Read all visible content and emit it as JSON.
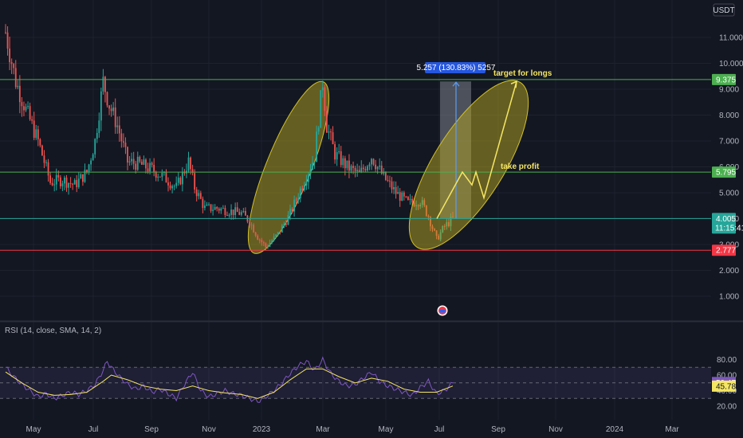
{
  "chart_data": [
    {
      "type": "candlestick",
      "currency": "USDT",
      "x_ticks": [
        "May",
        "Jul",
        "Sep",
        "Nov",
        "2023",
        "Mar",
        "May",
        "Jul",
        "Sep",
        "Nov",
        "2024",
        "Mar"
      ],
      "y_ticks": [
        "1.000",
        "2.000",
        "3.000",
        "4.000",
        "5.000",
        "6.000",
        "7.000",
        "8.000",
        "9.000",
        "10.000",
        "11.000"
      ],
      "ylim": [
        0.5,
        12.2
      ],
      "price_path": [
        [
          0,
          11.2
        ],
        [
          5,
          9.3
        ],
        [
          10,
          8.2
        ],
        [
          16,
          7.0
        ],
        [
          22,
          5.4
        ],
        [
          28,
          5.5
        ],
        [
          34,
          5.3
        ],
        [
          40,
          5.8
        ],
        [
          44,
          7.0
        ],
        [
          48,
          9.3
        ],
        [
          51,
          8.4
        ],
        [
          55,
          7.6
        ],
        [
          60,
          6.2
        ],
        [
          66,
          6.1
        ],
        [
          72,
          5.9
        ],
        [
          78,
          5.6
        ],
        [
          84,
          5.2
        ],
        [
          90,
          6.2
        ],
        [
          93,
          5.2
        ],
        [
          98,
          4.4
        ],
        [
          104,
          4.4
        ],
        [
          110,
          4.3
        ],
        [
          116,
          4.2
        ],
        [
          120,
          3.9
        ],
        [
          124,
          3.3
        ],
        [
          128,
          2.9
        ],
        [
          134,
          3.4
        ],
        [
          140,
          4.2
        ],
        [
          146,
          5.3
        ],
        [
          152,
          6.4
        ],
        [
          156,
          9.3
        ],
        [
          158,
          7.6
        ],
        [
          162,
          6.5
        ],
        [
          168,
          6.0
        ],
        [
          174,
          5.7
        ],
        [
          180,
          6.4
        ],
        [
          186,
          5.6
        ],
        [
          192,
          5.0
        ],
        [
          198,
          4.6
        ],
        [
          204,
          4.7
        ],
        [
          208,
          4.1
        ],
        [
          212,
          3.2
        ],
        [
          216,
          3.7
        ],
        [
          220,
          4.0
        ]
      ],
      "price_lines": [
        {
          "value": 9.375,
          "label": "9.375",
          "color": "#4caf50"
        },
        {
          "value": 5.795,
          "label": "5.795",
          "color": "#4caf50"
        },
        {
          "value": 4.005,
          "label": "4.005",
          "color": "#26a69a"
        },
        {
          "value": 2.777,
          "label": "2.777",
          "color": "#f23645"
        }
      ],
      "last_price": {
        "value": "4.005",
        "countdown": "11:15:41"
      },
      "measure_label": "5.257 (130.83%) 5257",
      "annotations": [
        {
          "text": "target for longs"
        },
        {
          "text": "take profit"
        }
      ]
    },
    {
      "type": "line",
      "title": "RSI (14, close, SMA, 14, 2)",
      "y_ticks": [
        "20.00",
        "40.00",
        "60.00",
        "80.00"
      ],
      "ylim": [
        17,
        88
      ],
      "bands": [
        30,
        50,
        70
      ],
      "rsi_path": [
        [
          0,
          70
        ],
        [
          4,
          58
        ],
        [
          8,
          48
        ],
        [
          12,
          40
        ],
        [
          16,
          32
        ],
        [
          20,
          36
        ],
        [
          24,
          30
        ],
        [
          28,
          34
        ],
        [
          32,
          38
        ],
        [
          36,
          35
        ],
        [
          40,
          40
        ],
        [
          44,
          48
        ],
        [
          48,
          66
        ],
        [
          50,
          78
        ],
        [
          52,
          70
        ],
        [
          56,
          58
        ],
        [
          60,
          48
        ],
        [
          64,
          42
        ],
        [
          68,
          46
        ],
        [
          72,
          38
        ],
        [
          76,
          42
        ],
        [
          80,
          36
        ],
        [
          84,
          30
        ],
        [
          88,
          48
        ],
        [
          92,
          64
        ],
        [
          96,
          40
        ],
        [
          100,
          32
        ],
        [
          104,
          36
        ],
        [
          108,
          40
        ],
        [
          112,
          36
        ],
        [
          116,
          34
        ],
        [
          120,
          30
        ],
        [
          124,
          26
        ],
        [
          128,
          32
        ],
        [
          132,
          40
        ],
        [
          136,
          50
        ],
        [
          140,
          62
        ],
        [
          144,
          72
        ],
        [
          148,
          78
        ],
        [
          152,
          66
        ],
        [
          156,
          80
        ],
        [
          160,
          62
        ],
        [
          164,
          52
        ],
        [
          168,
          46
        ],
        [
          172,
          48
        ],
        [
          176,
          56
        ],
        [
          180,
          64
        ],
        [
          184,
          52
        ],
        [
          188,
          46
        ],
        [
          192,
          42
        ],
        [
          196,
          38
        ],
        [
          200,
          34
        ],
        [
          204,
          44
        ],
        [
          208,
          52
        ],
        [
          212,
          36
        ],
        [
          216,
          40
        ],
        [
          220,
          50
        ]
      ],
      "sma_path": [
        [
          0,
          64
        ],
        [
          8,
          50
        ],
        [
          16,
          38
        ],
        [
          24,
          34
        ],
        [
          32,
          35
        ],
        [
          40,
          38
        ],
        [
          48,
          52
        ],
        [
          52,
          60
        ],
        [
          60,
          54
        ],
        [
          68,
          46
        ],
        [
          76,
          42
        ],
        [
          84,
          40
        ],
        [
          92,
          46
        ],
        [
          100,
          40
        ],
        [
          108,
          37
        ],
        [
          116,
          35
        ],
        [
          124,
          30
        ],
        [
          132,
          38
        ],
        [
          140,
          54
        ],
        [
          148,
          68
        ],
        [
          156,
          68
        ],
        [
          164,
          58
        ],
        [
          172,
          50
        ],
        [
          180,
          56
        ],
        [
          188,
          52
        ],
        [
          196,
          42
        ],
        [
          204,
          38
        ],
        [
          212,
          38
        ],
        [
          220,
          46
        ]
      ],
      "rsi_value": "50.47",
      "sma_value": "45.78"
    }
  ]
}
